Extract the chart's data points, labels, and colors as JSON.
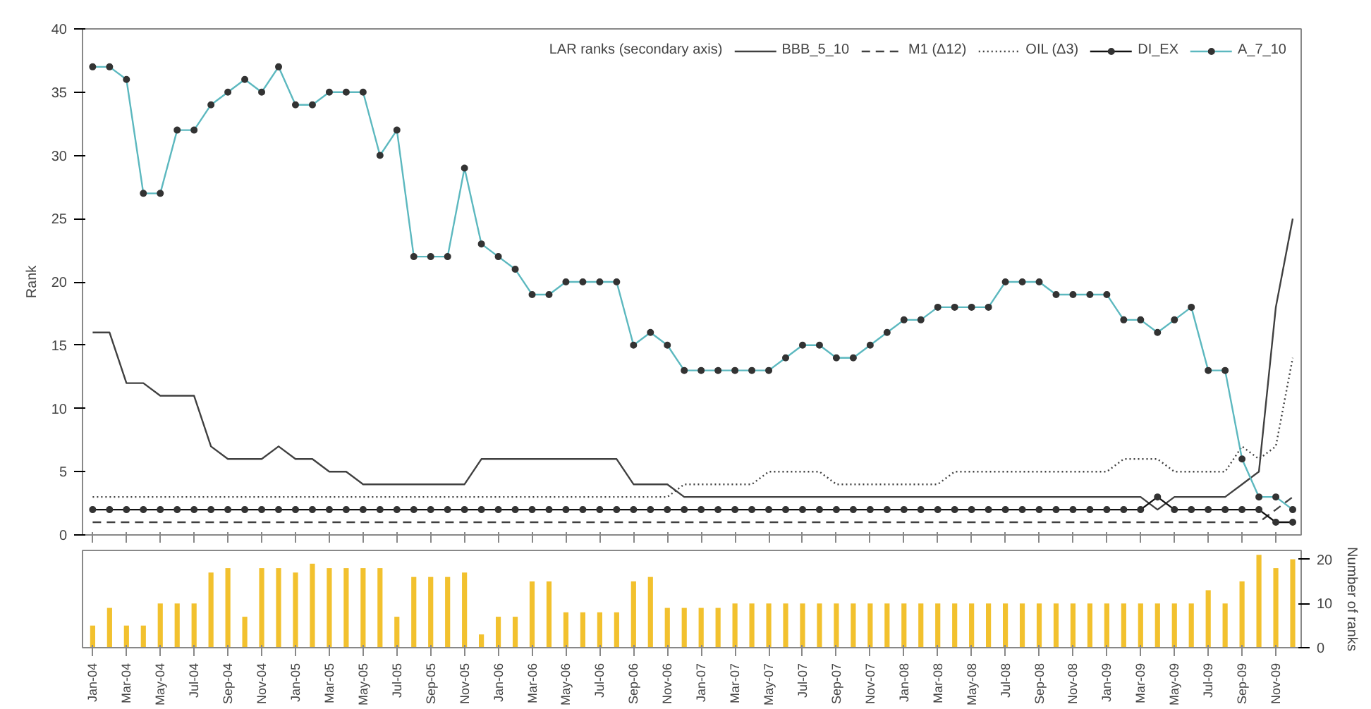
{
  "chart_data": [
    {
      "type": "line",
      "ylabel": "Rank",
      "ylim": [
        0,
        40
      ],
      "yticks": [
        0,
        5,
        10,
        15,
        20,
        25,
        30,
        35,
        40
      ],
      "grid": false,
      "legend": "top right",
      "tick_labels": "y",
      "series": [
        {
          "name": "BBB_5_10",
          "color": "#404040",
          "line_style": "solid",
          "marker": "none",
          "values": [
            16,
            16,
            12,
            12,
            11,
            11,
            11,
            7,
            6,
            6,
            6,
            7,
            6,
            6,
            5,
            5,
            4,
            4,
            4,
            4,
            4,
            4,
            4,
            6,
            6,
            6,
            6,
            6,
            6,
            6,
            6,
            6,
            4,
            4,
            4,
            3,
            3,
            3,
            3,
            3,
            3,
            3,
            3,
            3,
            3,
            3,
            3,
            3,
            3,
            3,
            3,
            3,
            3,
            3,
            3,
            3,
            3,
            3,
            3,
            3,
            3,
            3,
            3,
            2,
            3,
            3,
            3,
            3,
            4,
            5,
            18,
            25
          ]
        },
        {
          "name": "M1 (Δ12)",
          "color": "#404040",
          "line_style": "dashed",
          "marker": "none",
          "values": [
            1,
            1,
            1,
            1,
            1,
            1,
            1,
            1,
            1,
            1,
            1,
            1,
            1,
            1,
            1,
            1,
            1,
            1,
            1,
            1,
            1,
            1,
            1,
            1,
            1,
            1,
            1,
            1,
            1,
            1,
            1,
            1,
            1,
            1,
            1,
            1,
            1,
            1,
            1,
            1,
            1,
            1,
            1,
            1,
            1,
            1,
            1,
            1,
            1,
            1,
            1,
            1,
            1,
            1,
            1,
            1,
            1,
            1,
            1,
            1,
            1,
            1,
            1,
            1,
            1,
            1,
            1,
            1,
            1,
            1,
            2,
            3
          ]
        },
        {
          "name": "OIL (Δ3)",
          "color": "#404040",
          "line_style": "dotted",
          "marker": "none",
          "values": [
            3,
            3,
            3,
            3,
            3,
            3,
            3,
            3,
            3,
            3,
            3,
            3,
            3,
            3,
            3,
            3,
            3,
            3,
            3,
            3,
            3,
            3,
            3,
            3,
            3,
            3,
            3,
            3,
            3,
            3,
            3,
            3,
            3,
            3,
            3,
            4,
            4,
            4,
            4,
            4,
            5,
            5,
            5,
            5,
            4,
            4,
            4,
            4,
            4,
            4,
            4,
            5,
            5,
            5,
            5,
            5,
            5,
            5,
            5,
            5,
            5,
            6,
            6,
            6,
            5,
            5,
            5,
            5,
            7,
            6,
            7,
            14
          ]
        },
        {
          "name": "DI_EX",
          "color": "#111111",
          "line_style": "solid",
          "marker": "circle",
          "values": [
            2,
            2,
            2,
            2,
            2,
            2,
            2,
            2,
            2,
            2,
            2,
            2,
            2,
            2,
            2,
            2,
            2,
            2,
            2,
            2,
            2,
            2,
            2,
            2,
            2,
            2,
            2,
            2,
            2,
            2,
            2,
            2,
            2,
            2,
            2,
            2,
            2,
            2,
            2,
            2,
            2,
            2,
            2,
            2,
            2,
            2,
            2,
            2,
            2,
            2,
            2,
            2,
            2,
            2,
            2,
            2,
            2,
            2,
            2,
            2,
            2,
            2,
            2,
            3,
            2,
            2,
            2,
            2,
            2,
            2,
            1,
            1
          ]
        },
        {
          "name": "A_7_10",
          "color": "#5cb8bf",
          "line_style": "solid",
          "marker": "circle",
          "values": [
            37,
            37,
            36,
            27,
            27,
            32,
            32,
            34,
            35,
            36,
            35,
            37,
            34,
            34,
            35,
            35,
            35,
            30,
            32,
            22,
            22,
            22,
            29,
            23,
            22,
            21,
            19,
            19,
            20,
            20,
            20,
            20,
            15,
            16,
            15,
            13,
            13,
            13,
            13,
            13,
            13,
            14,
            15,
            15,
            14,
            14,
            15,
            16,
            17,
            17,
            18,
            18,
            18,
            18,
            20,
            20,
            20,
            19,
            19,
            19,
            19,
            17,
            17,
            16,
            17,
            18,
            13,
            13,
            6,
            3,
            3,
            2
          ]
        }
      ]
    },
    {
      "type": "bar",
      "y2label": "Number of ranks",
      "y2lim": [
        0,
        22
      ],
      "y2ticks": [
        0,
        10,
        20
      ],
      "grid": false,
      "categories": [
        "Jan-04",
        null,
        "Mar-04",
        null,
        "May-04",
        null,
        "Jul-04",
        null,
        "Sep-04",
        null,
        "Nov-04",
        null,
        "Jan-05",
        null,
        "Mar-05",
        null,
        "May-05",
        null,
        "Jul-05",
        null,
        "Sep-05",
        null,
        "Nov-05",
        null,
        "Jan-06",
        null,
        "Mar-06",
        null,
        "May-06",
        null,
        "Jul-06",
        null,
        "Sep-06",
        null,
        "Nov-06",
        null,
        "Jan-07",
        null,
        "Mar-07",
        null,
        "May-07",
        null,
        "Jul-07",
        null,
        "Sep-07",
        null,
        "Nov-07",
        null,
        "Jan-08",
        null,
        "Mar-08",
        null,
        "May-08",
        null,
        "Jul-08",
        null,
        "Sep-08",
        null,
        "Nov-08",
        null,
        "Jan-09",
        null,
        "Mar-09",
        null,
        "May-09",
        null,
        "Jul-09",
        null,
        "Sep-09",
        null,
        "Nov-09",
        null
      ],
      "series": [
        {
          "name": "LAR ranks (secondary axis)",
          "color": "#f2c12e",
          "axis": "y2",
          "values": [
            5,
            9,
            5,
            5,
            10,
            10,
            10,
            17,
            18,
            7,
            18,
            18,
            17,
            19,
            18,
            18,
            18,
            18,
            7,
            16,
            16,
            16,
            17,
            3,
            7,
            7,
            15,
            15,
            8,
            8,
            8,
            8,
            15,
            16,
            9,
            9,
            9,
            9,
            10,
            10,
            10,
            10,
            10,
            10,
            10,
            10,
            10,
            10,
            10,
            10,
            10,
            10,
            10,
            10,
            10,
            10,
            10,
            10,
            10,
            10,
            10,
            10,
            10,
            10,
            10,
            10,
            13,
            10,
            15,
            21,
            18,
            20
          ]
        }
      ]
    }
  ]
}
